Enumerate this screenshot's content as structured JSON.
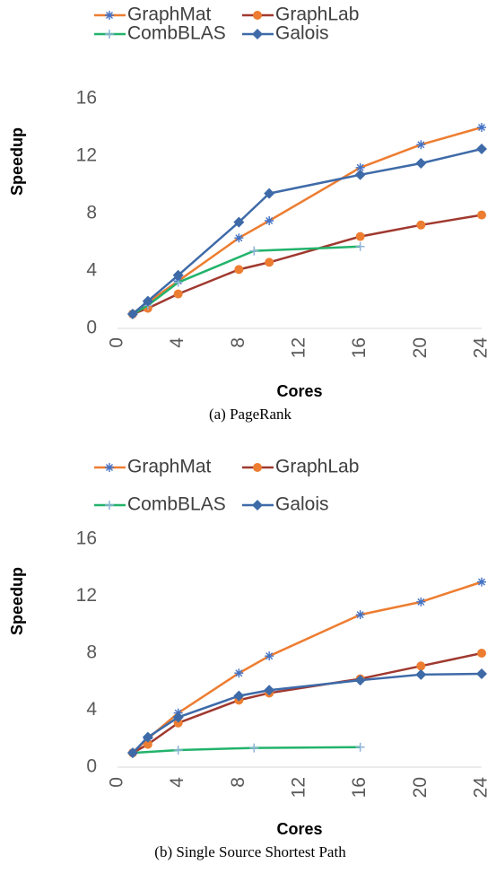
{
  "chart_data": [
    {
      "type": "line",
      "caption": "(a) PageRank",
      "x_label": "Cores",
      "y_label": "Speedup",
      "xlim": [
        0,
        24
      ],
      "xticks": [
        0,
        4,
        8,
        12,
        16,
        20,
        24
      ],
      "ylim": [
        0,
        16
      ],
      "yticks": [
        0,
        4,
        8,
        12,
        16
      ],
      "grid": false,
      "legend": "top",
      "series": [
        {
          "name": "GraphMat",
          "color": "#ED7D31",
          "marker": "asterisk",
          "marker_color": "#4472C4",
          "x": [
            1,
            2,
            4,
            8,
            10,
            16,
            20,
            24
          ],
          "values": [
            1,
            1.8,
            3.3,
            6.3,
            7.5,
            11.2,
            12.8,
            14
          ]
        },
        {
          "name": "GraphLab",
          "color": "#A0392F",
          "marker": "circle",
          "marker_color": "#ED7D31",
          "x": [
            1,
            2,
            4,
            8,
            10,
            16,
            20,
            24
          ],
          "values": [
            1,
            1.4,
            2.4,
            4.1,
            4.6,
            6.4,
            7.2,
            7.9
          ]
        },
        {
          "name": "CombBLAS",
          "color": "#22B36B",
          "marker": "plus",
          "marker_color": "#8FB3D9",
          "x": [
            1,
            2,
            4,
            9,
            16
          ],
          "values": [
            1,
            1.6,
            3.2,
            5.4,
            5.7
          ]
        },
        {
          "name": "Galois",
          "color": "#3E6AA8",
          "marker": "diamond",
          "marker_color": "#3E6AA8",
          "x": [
            1,
            2,
            4,
            8,
            10,
            16,
            20,
            24
          ],
          "values": [
            1,
            1.9,
            3.7,
            7.4,
            9.4,
            10.7,
            11.5,
            12.5
          ]
        }
      ]
    },
    {
      "type": "line",
      "caption": "(b) Single Source Shortest Path",
      "x_label": "Cores",
      "y_label": "Speedup",
      "xlim": [
        0,
        24
      ],
      "xticks": [
        0,
        4,
        8,
        12,
        16,
        20,
        24
      ],
      "ylim": [
        0,
        16
      ],
      "yticks": [
        0,
        4,
        8,
        12,
        16
      ],
      "grid": false,
      "legend": "top",
      "series": [
        {
          "name": "GraphMat",
          "color": "#ED7D31",
          "marker": "asterisk",
          "marker_color": "#4472C4",
          "x": [
            1,
            2,
            4,
            8,
            10,
            16,
            20,
            24
          ],
          "values": [
            1,
            2,
            3.8,
            6.6,
            7.8,
            10.7,
            11.6,
            13
          ]
        },
        {
          "name": "GraphLab",
          "color": "#A0392F",
          "marker": "circle",
          "marker_color": "#ED7D31",
          "x": [
            1,
            2,
            4,
            8,
            10,
            16,
            20,
            24
          ],
          "values": [
            1,
            1.6,
            3.1,
            4.7,
            5.2,
            6.2,
            7.1,
            8
          ]
        },
        {
          "name": "CombBLAS",
          "color": "#22B36B",
          "marker": "plus",
          "marker_color": "#8FB3D9",
          "x": [
            1,
            4,
            9,
            16
          ],
          "values": [
            1,
            1.2,
            1.35,
            1.4
          ]
        },
        {
          "name": "Galois",
          "color": "#3E6AA8",
          "marker": "diamond",
          "marker_color": "#3E6AA8",
          "x": [
            1,
            2,
            4,
            8,
            10,
            16,
            20,
            24
          ],
          "values": [
            1,
            2.1,
            3.5,
            5,
            5.4,
            6.1,
            6.5,
            6.55
          ]
        }
      ]
    }
  ]
}
